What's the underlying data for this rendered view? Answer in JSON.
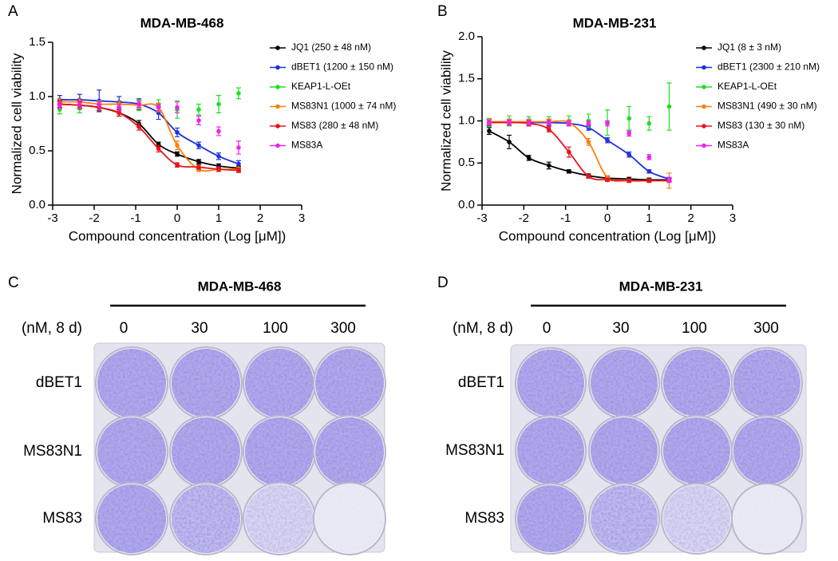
{
  "chart_data": [
    {
      "type": "line",
      "panel": "A",
      "title": "MDA-MB-468",
      "x_label": "Compound concentration (Log [μM])",
      "y_label": "Normalized cell viability",
      "xlim": [
        -3,
        3
      ],
      "xticks": [
        -3,
        -2,
        -1,
        0,
        1,
        2,
        3
      ],
      "ylim": [
        0,
        1.5
      ],
      "yticks": [
        {
          "value": 0,
          "label": "0.0"
        },
        {
          "value": 0.5,
          "label": "0.5"
        },
        {
          "value": 1,
          "label": "1.0"
        },
        {
          "value": 1.5,
          "label": "1.5"
        }
      ],
      "legend": "right",
      "x": [
        -2.83,
        -2.35,
        -1.88,
        -1.4,
        -0.92,
        -0.45,
        0,
        0.52,
        1.0,
        1.48
      ],
      "series": [
        {
          "name": "JQ1 (250 ± 48 nM)",
          "color": "#000000",
          "line": true,
          "values": [
            0.93,
            0.92,
            0.9,
            0.85,
            0.75,
            0.56,
            0.47,
            0.4,
            0.36,
            0.34
          ],
          "errors": [
            0.03,
            0.03,
            0.03,
            0.03,
            0.03,
            0.02,
            0.02,
            0.02,
            0.02,
            0.02
          ]
        },
        {
          "name": "dBET1 (1200 ± 150 nM)",
          "color": "#1f2fe0",
          "line": true,
          "values": [
            0.97,
            0.97,
            0.96,
            0.95,
            0.93,
            0.85,
            0.67,
            0.55,
            0.45,
            0.38
          ],
          "errors": [
            0.04,
            0.05,
            0.1,
            0.05,
            0.05,
            0.06,
            0.04,
            0.03,
            0.03,
            0.03
          ]
        },
        {
          "name": "KEAP1-L-OEt",
          "color": "#22dd22",
          "line": false,
          "values": [
            0.88,
            0.89,
            0.92,
            0.9,
            0.92,
            0.92,
            0.88,
            0.88,
            0.93,
            1.03
          ],
          "errors": [
            0.04,
            0.04,
            0.04,
            0.04,
            0.05,
            0.05,
            0.08,
            0.05,
            0.08,
            0.05
          ]
        },
        {
          "name": "MS83N1 (1000 ± 74 nM)",
          "color": "#ff7f0e",
          "line": true,
          "values": [
            0.95,
            0.95,
            0.93,
            0.93,
            0.92,
            0.9,
            0.55,
            0.33,
            0.33,
            0.33
          ],
          "errors": [
            0.03,
            0.03,
            0.03,
            0.03,
            0.03,
            0.04,
            0.04,
            0.02,
            0.02,
            0.02
          ]
        },
        {
          "name": "MS83 (280 ± 48 nM)",
          "color": "#e8141b",
          "line": true,
          "values": [
            0.93,
            0.92,
            0.9,
            0.85,
            0.72,
            0.52,
            0.37,
            0.35,
            0.33,
            0.32
          ],
          "errors": [
            0.03,
            0.03,
            0.03,
            0.03,
            0.03,
            0.03,
            0.02,
            0.02,
            0.02,
            0.02
          ]
        },
        {
          "name": "MS83A",
          "color": "#ee22ee",
          "line": false,
          "values": [
            0.92,
            0.93,
            0.92,
            0.9,
            0.93,
            0.9,
            0.9,
            0.78,
            0.68,
            0.53
          ],
          "errors": [
            0.03,
            0.03,
            0.03,
            0.03,
            0.03,
            0.03,
            0.05,
            0.04,
            0.04,
            0.06
          ]
        }
      ]
    },
    {
      "type": "line",
      "panel": "B",
      "title": "MDA-MB-231",
      "x_label": "Compound concentration (Log [μM])",
      "y_label": "Normalized cell viability",
      "xlim": [
        -3,
        3
      ],
      "xticks": [
        -3,
        -2,
        -1,
        0,
        1,
        2,
        3
      ],
      "ylim": [
        0,
        2
      ],
      "yticks": [
        {
          "value": 0,
          "label": "0.0"
        },
        {
          "value": 0.5,
          "label": "0.5"
        },
        {
          "value": 1,
          "label": "1.0"
        },
        {
          "value": 1.5,
          "label": "1.5"
        },
        {
          "value": 2,
          "label": "2.0"
        }
      ],
      "legend": "right",
      "x": [
        -2.83,
        -2.35,
        -1.88,
        -1.4,
        -0.92,
        -0.45,
        0,
        0.52,
        1.0,
        1.48
      ],
      "series": [
        {
          "name": "JQ1 (8 ± 3 nM)",
          "color": "#000000",
          "line": true,
          "values": [
            0.88,
            0.75,
            0.56,
            0.47,
            0.4,
            0.35,
            0.32,
            0.31,
            0.3,
            0.3
          ],
          "errors": [
            0.04,
            0.08,
            0.03,
            0.04,
            0.02,
            0.02,
            0.02,
            0.02,
            0.02,
            0.02
          ]
        },
        {
          "name": "dBET1 (2300 ± 210 nM)",
          "color": "#1f2fe0",
          "line": true,
          "values": [
            0.98,
            0.98,
            0.98,
            0.98,
            0.97,
            0.92,
            0.77,
            0.6,
            0.4,
            0.31
          ],
          "errors": [
            0.04,
            0.04,
            0.04,
            0.04,
            0.03,
            0.03,
            0.03,
            0.03,
            0.02,
            0.02
          ]
        },
        {
          "name": "KEAP1-L-OEt",
          "color": "#22dd22",
          "line": false,
          "values": [
            0.98,
            1.0,
            1.0,
            1.0,
            1.0,
            1.0,
            0.98,
            1.03,
            0.97,
            1.17
          ],
          "errors": [
            0.05,
            0.06,
            0.05,
            0.05,
            0.06,
            0.08,
            0.15,
            0.14,
            0.08,
            0.28
          ]
        },
        {
          "name": "MS83N1 (490 ± 30 nM)",
          "color": "#ff7f0e",
          "line": true,
          "values": [
            0.99,
            0.99,
            0.99,
            0.99,
            0.98,
            0.75,
            0.33,
            0.29,
            0.29,
            0.29
          ],
          "errors": [
            0.03,
            0.03,
            0.03,
            0.03,
            0.03,
            0.04,
            0.02,
            0.02,
            0.02,
            0.09
          ]
        },
        {
          "name": "MS83 (130 ± 30 nM)",
          "color": "#e8141b",
          "line": true,
          "values": [
            0.98,
            0.98,
            0.97,
            0.9,
            0.63,
            0.34,
            0.3,
            0.29,
            0.29,
            0.29
          ],
          "errors": [
            0.03,
            0.03,
            0.03,
            0.03,
            0.06,
            0.02,
            0.02,
            0.02,
            0.02,
            0.02
          ]
        },
        {
          "name": "MS83A",
          "color": "#ee22ee",
          "line": false,
          "values": [
            0.98,
            0.98,
            0.98,
            0.98,
            0.97,
            0.97,
            0.97,
            0.85,
            0.57,
            0.3
          ],
          "errors": [
            0.03,
            0.03,
            0.03,
            0.03,
            0.03,
            0.03,
            0.03,
            0.03,
            0.03,
            0.03
          ]
        }
      ]
    }
  ],
  "plates": [
    {
      "panel": "C",
      "title": "MDA-MB-468",
      "unit": "(nM, 8 d)",
      "doses": [
        "0",
        "30",
        "100",
        "300"
      ],
      "rows": [
        "dBET1",
        "MS83N1",
        "MS83"
      ]
    },
    {
      "panel": "D",
      "title": "MDA-MB-231",
      "unit": "(nM, 8 d)",
      "doses": [
        "0",
        "30",
        "100",
        "300"
      ],
      "rows": [
        "dBET1",
        "MS83N1",
        "MS83"
      ]
    }
  ]
}
